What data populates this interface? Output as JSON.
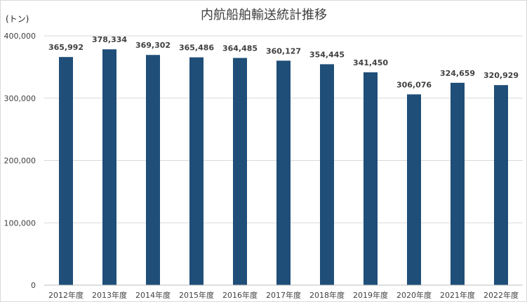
{
  "chart_data": {
    "type": "bar",
    "title": "内航船舶輸送統計推移",
    "ylabel": "(トン)",
    "xlabel": "",
    "categories": [
      "2012年度",
      "2013年度",
      "2014年度",
      "2015年度",
      "2016年度",
      "2017年度",
      "2018年度",
      "2019年度",
      "2020年度",
      "2021年度",
      "2022年度"
    ],
    "values": [
      365992,
      378334,
      369302,
      365486,
      364485,
      360127,
      354445,
      341450,
      306076,
      324659,
      320929
    ],
    "data_labels": [
      "365,992",
      "378,334",
      "369,302",
      "365,486",
      "364,485",
      "360,127",
      "354,445",
      "341,450",
      "306,076",
      "324,659",
      "320,929"
    ],
    "yticks": [
      0,
      100000,
      200000,
      300000,
      400000
    ],
    "ytick_labels": [
      "0",
      "100,000",
      "200,000",
      "300,000",
      "400,000"
    ],
    "ylim": [
      0,
      400000
    ],
    "grid": true,
    "legend": "none",
    "bar_color": "#1f4e79"
  }
}
